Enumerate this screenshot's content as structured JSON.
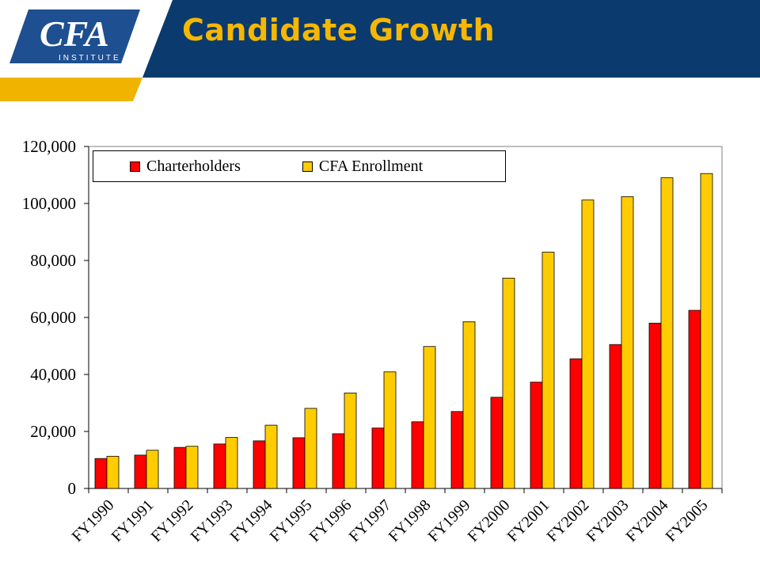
{
  "header": {
    "title": "Candidate Growth",
    "logo_main": "CFA",
    "logo_sub": "INSTITUTE"
  },
  "colors": {
    "navy": "#0B3A6E",
    "gold": "#F5B700",
    "charterholders": "#FF0000",
    "enrollment": "#FFCC00"
  },
  "chart_data": {
    "type": "bar",
    "categories": [
      "FY1990",
      "FY1991",
      "FY1992",
      "FY1993",
      "FY1994",
      "FY1995",
      "FY1996",
      "FY1997",
      "FY1998",
      "FY1999",
      "FY2000",
      "FY2001",
      "FY2002",
      "FY2003",
      "FY2004",
      "FY2005"
    ],
    "series": [
      {
        "name": "Charterholders",
        "color": "#FF0000",
        "values": [
          10500,
          11700,
          14400,
          15600,
          16700,
          17800,
          19200,
          21200,
          23400,
          27000,
          32000,
          37300,
          45500,
          50500,
          58000,
          62500
        ]
      },
      {
        "name": "CFA Enrollment",
        "color": "#FFCC00",
        "values": [
          11300,
          13400,
          14800,
          17900,
          22200,
          28100,
          33500,
          40900,
          49800,
          58500,
          73800,
          82900,
          101200,
          102400,
          109000,
          110500
        ]
      }
    ],
    "ylim": [
      0,
      120000
    ],
    "yticks": [
      "0",
      "20,000",
      "40,000",
      "60,000",
      "80,000",
      "100,000",
      "120,000"
    ],
    "grid": false,
    "legend": "top-left"
  }
}
